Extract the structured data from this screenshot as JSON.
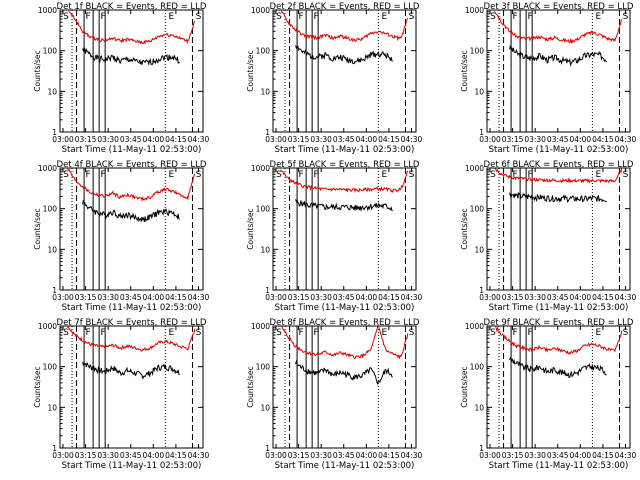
{
  "colors": {
    "events": "#000000",
    "lld": "#e00000",
    "axis": "#000000"
  },
  "common": {
    "xlabel": "Start Time (11-May-11 02:53:00)",
    "ylabel": "Counts/sec",
    "xticks": [
      "03:00",
      "03:15",
      "03:30",
      "03:45",
      "04:00",
      "04:15",
      "04:30"
    ],
    "yticks": [
      "1",
      "10",
      "100",
      "1000"
    ],
    "markers": {
      "S": "S",
      "F": "F",
      "E": "E"
    }
  },
  "chart_data": [
    {
      "type": "line",
      "title": "Det 1f BLACK = Events, RED = LLD",
      "xlabel": "Start Time (11-May-11 02:53:00)",
      "ylabel": "Counts/sec",
      "ylog": true,
      "ylim": [
        1,
        1000
      ],
      "x_minutes_after_0253": [
        10,
        15,
        20,
        25,
        30,
        35,
        40,
        45,
        50,
        55,
        60,
        65,
        70,
        75,
        80,
        85,
        90,
        95
      ],
      "series": [
        {
          "name": "Events",
          "values": [
            null,
            null,
            110,
            80,
            65,
            60,
            70,
            55,
            62,
            55,
            50,
            52,
            62,
            70,
            70,
            55,
            null,
            null
          ]
        },
        {
          "name": "LLD",
          "values": [
            1000,
            600,
            300,
            220,
            190,
            180,
            200,
            175,
            190,
            170,
            160,
            170,
            220,
            250,
            240,
            200,
            170,
            600
          ]
        }
      ],
      "lines": {
        "dotted": [
          13,
          75
        ],
        "dashed": [
          16,
          93
        ],
        "solid": [
          21,
          27,
          31,
          35
        ]
      }
    },
    {
      "type": "line",
      "title": "Det 2f BLACK = Events, RED = LLD",
      "xlabel": "Start Time (11-May-11 02:53:00)",
      "ylabel": "Counts/sec",
      "ylog": true,
      "ylim": [
        1,
        1000
      ],
      "x_minutes_after_0253": [
        10,
        15,
        20,
        25,
        30,
        35,
        40,
        45,
        50,
        55,
        60,
        65,
        70,
        75,
        80,
        85,
        90,
        95
      ],
      "series": [
        {
          "name": "Events",
          "values": [
            null,
            null,
            140,
            90,
            75,
            70,
            80,
            65,
            70,
            60,
            55,
            60,
            80,
            85,
            80,
            60,
            null,
            null
          ]
        },
        {
          "name": "LLD",
          "values": [
            1000,
            500,
            320,
            240,
            220,
            210,
            240,
            200,
            230,
            200,
            180,
            200,
            270,
            300,
            260,
            220,
            200,
            700
          ]
        }
      ],
      "lines": {
        "dotted": [
          13,
          75
        ],
        "dashed": [
          16,
          93
        ],
        "solid": [
          21,
          27,
          31,
          35
        ]
      }
    },
    {
      "type": "line",
      "title": "Det 3f BLACK = Events, RED = LLD",
      "xlabel": "Start Time (11-May-11 02:53:00)",
      "ylabel": "Counts/sec",
      "ylog": true,
      "ylim": [
        1,
        1000
      ],
      "x_minutes_after_0253": [
        10,
        15,
        20,
        25,
        30,
        35,
        40,
        45,
        50,
        55,
        60,
        65,
        70,
        75,
        80,
        85,
        90,
        95
      ],
      "series": [
        {
          "name": "Events",
          "values": [
            null,
            null,
            120,
            85,
            70,
            65,
            75,
            60,
            68,
            58,
            52,
            58,
            75,
            82,
            78,
            58,
            null,
            null
          ]
        },
        {
          "name": "LLD",
          "values": [
            1000,
            500,
            300,
            220,
            200,
            200,
            220,
            190,
            210,
            185,
            170,
            190,
            250,
            280,
            250,
            200,
            180,
            650
          ]
        }
      ],
      "lines": {
        "dotted": [
          13,
          75
        ],
        "dashed": [
          16,
          93
        ],
        "solid": [
          21,
          27,
          31,
          35
        ]
      }
    },
    {
      "type": "line",
      "title": "Det 4f BLACK = Events, RED = LLD",
      "xlabel": "Start Time (11-May-11 02:53:00)",
      "ylabel": "Counts/sec",
      "ylog": true,
      "ylim": [
        1,
        1000
      ],
      "x_minutes_after_0253": [
        10,
        15,
        20,
        25,
        30,
        35,
        40,
        45,
        50,
        55,
        60,
        65,
        70,
        75,
        80,
        85,
        90,
        95
      ],
      "series": [
        {
          "name": "Events",
          "values": [
            null,
            null,
            150,
            100,
            80,
            70,
            85,
            65,
            72,
            60,
            55,
            62,
            80,
            85,
            80,
            60,
            null,
            null
          ]
        },
        {
          "name": "LLD",
          "values": [
            1000,
            500,
            350,
            250,
            220,
            200,
            240,
            190,
            220,
            190,
            170,
            190,
            260,
            300,
            270,
            210,
            190,
            800
          ]
        }
      ],
      "lines": {
        "dotted": [
          13,
          75
        ],
        "dashed": [
          16,
          93
        ],
        "solid": [
          21,
          27,
          31,
          35
        ]
      }
    },
    {
      "type": "line",
      "title": "Det 5f BLACK = Events, RED = LLD",
      "xlabel": "Start Time (11-May-11 02:53:00)",
      "ylabel": "Counts/sec",
      "ylog": true,
      "ylim": [
        1,
        1000
      ],
      "x_minutes_after_0253": [
        10,
        15,
        20,
        25,
        30,
        35,
        40,
        45,
        50,
        55,
        60,
        65,
        70,
        75,
        80,
        85,
        90,
        95
      ],
      "series": [
        {
          "name": "Events",
          "values": [
            null,
            null,
            150,
            130,
            120,
            115,
            110,
            110,
            110,
            110,
            105,
            110,
            115,
            120,
            115,
            100,
            null,
            null
          ]
        },
        {
          "name": "LLD",
          "values": [
            900,
            550,
            420,
            360,
            330,
            310,
            300,
            300,
            295,
            290,
            285,
            290,
            300,
            310,
            300,
            280,
            300,
            900
          ]
        }
      ],
      "lines": {
        "dotted": [
          13,
          75
        ],
        "dashed": [
          16,
          93
        ],
        "solid": [
          21,
          27,
          31,
          35
        ]
      }
    },
    {
      "type": "line",
      "title": "Det 6f BLACK = Events, RED = LLD",
      "xlabel": "Start Time (11-May-11 02:53:00)",
      "ylabel": "Counts/sec",
      "ylog": true,
      "ylim": [
        1,
        1000
      ],
      "x_minutes_after_0253": [
        10,
        15,
        20,
        25,
        30,
        35,
        40,
        45,
        50,
        55,
        60,
        65,
        70,
        75,
        80,
        85,
        90,
        95
      ],
      "series": [
        {
          "name": "Events",
          "values": [
            null,
            null,
            230,
            210,
            200,
            195,
            190,
            185,
            180,
            180,
            178,
            175,
            175,
            180,
            175,
            170,
            null,
            null
          ]
        },
        {
          "name": "LLD",
          "values": [
            1000,
            700,
            600,
            560,
            540,
            520,
            510,
            500,
            495,
            490,
            490,
            485,
            485,
            490,
            485,
            480,
            480,
            1000
          ]
        }
      ],
      "lines": {
        "dotted": [
          13,
          75
        ],
        "dashed": [
          16,
          93
        ],
        "solid": [
          21,
          27,
          31,
          35
        ]
      }
    },
    {
      "type": "line",
      "title": "Det 7f BLACK = Events, RED = LLD",
      "xlabel": "Start Time (11-May-11 02:53:00)",
      "ylabel": "Counts/sec",
      "ylog": true,
      "ylim": [
        1,
        1000
      ],
      "x_minutes_after_0253": [
        10,
        15,
        20,
        25,
        30,
        35,
        40,
        45,
        50,
        55,
        60,
        65,
        70,
        75,
        80,
        85,
        90,
        95
      ],
      "series": [
        {
          "name": "Events",
          "values": [
            null,
            null,
            130,
            100,
            85,
            75,
            95,
            70,
            80,
            70,
            60,
            70,
            95,
            100,
            90,
            70,
            null,
            null
          ]
        },
        {
          "name": "LLD",
          "values": [
            1000,
            600,
            450,
            350,
            320,
            300,
            340,
            290,
            320,
            290,
            260,
            290,
            380,
            420,
            370,
            310,
            280,
            900
          ]
        }
      ],
      "lines": {
        "dotted": [
          13,
          75
        ],
        "dashed": [
          16,
          93
        ],
        "solid": [
          21,
          27,
          31,
          35
        ]
      }
    },
    {
      "type": "line",
      "title": "Det 8f BLACK = Events, RED = LLD",
      "xlabel": "Start Time (11-May-11 02:53:00)",
      "ylabel": "Counts/sec",
      "ylog": true,
      "ylim": [
        1,
        1000
      ],
      "x_minutes_after_0253": [
        10,
        15,
        20,
        25,
        30,
        35,
        40,
        45,
        50,
        55,
        60,
        65,
        70,
        75,
        80,
        85,
        90,
        95
      ],
      "series": [
        {
          "name": "Events",
          "values": [
            null,
            null,
            120,
            90,
            75,
            68,
            85,
            62,
            72,
            62,
            55,
            62,
            85,
            40,
            80,
            62,
            null,
            null
          ]
        },
        {
          "name": "LLD",
          "values": [
            1000,
            550,
            320,
            240,
            210,
            200,
            230,
            190,
            220,
            190,
            170,
            190,
            260,
            1000,
            250,
            200,
            170,
            700
          ]
        }
      ],
      "lines": {
        "dotted": [
          13,
          75
        ],
        "dashed": [
          16,
          93
        ],
        "solid": [
          21,
          27,
          31,
          35
        ]
      }
    },
    {
      "type": "line",
      "title": "Det 9f BLACK = Events, RED = LLD",
      "xlabel": "Start Time (11-May-11 02:53:00)",
      "ylabel": "Counts/sec",
      "ylog": true,
      "ylim": [
        1,
        1000
      ],
      "x_minutes_after_0253": [
        10,
        15,
        20,
        25,
        30,
        35,
        40,
        45,
        50,
        55,
        60,
        65,
        70,
        75,
        80,
        85,
        90,
        95
      ],
      "series": [
        {
          "name": "Events",
          "values": [
            null,
            null,
            160,
            120,
            95,
            85,
            100,
            75,
            85,
            72,
            65,
            72,
            95,
            100,
            90,
            70,
            null,
            null
          ]
        },
        {
          "name": "LLD",
          "values": [
            1000,
            600,
            420,
            320,
            280,
            260,
            300,
            250,
            280,
            250,
            220,
            250,
            330,
            360,
            320,
            270,
            240,
            800
          ]
        }
      ],
      "lines": {
        "dotted": [
          13,
          75
        ],
        "dashed": [
          16,
          93
        ],
        "solid": [
          21,
          27,
          31,
          35
        ]
      }
    }
  ]
}
